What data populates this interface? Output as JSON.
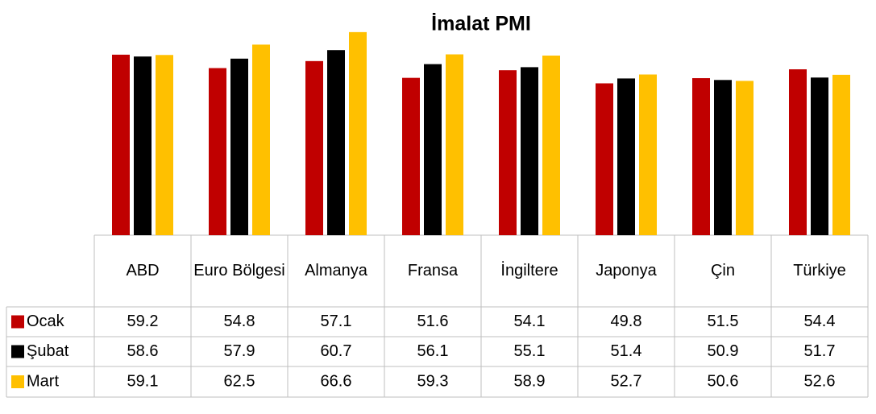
{
  "chart_data": {
    "type": "bar",
    "title": "İmalat PMI",
    "categories": [
      "ABD",
      "Euro Bölgesi",
      "Almanya",
      "Fransa",
      "İngiltere",
      "Japonya",
      "Çin",
      "Türkiye"
    ],
    "series": [
      {
        "name": "Ocak",
        "color": "#c00000",
        "values": [
          59.2,
          54.8,
          57.1,
          51.6,
          54.1,
          49.8,
          51.5,
          54.4
        ]
      },
      {
        "name": "Şubat",
        "color": "#000000",
        "values": [
          58.6,
          57.9,
          60.7,
          56.1,
          55.1,
          51.4,
          50.9,
          51.7
        ]
      },
      {
        "name": "Mart",
        "color": "#ffc000",
        "values": [
          59.1,
          62.5,
          66.6,
          59.3,
          58.9,
          52.7,
          50.6,
          52.6
        ]
      }
    ],
    "ylim": [
      0,
      70
    ]
  }
}
